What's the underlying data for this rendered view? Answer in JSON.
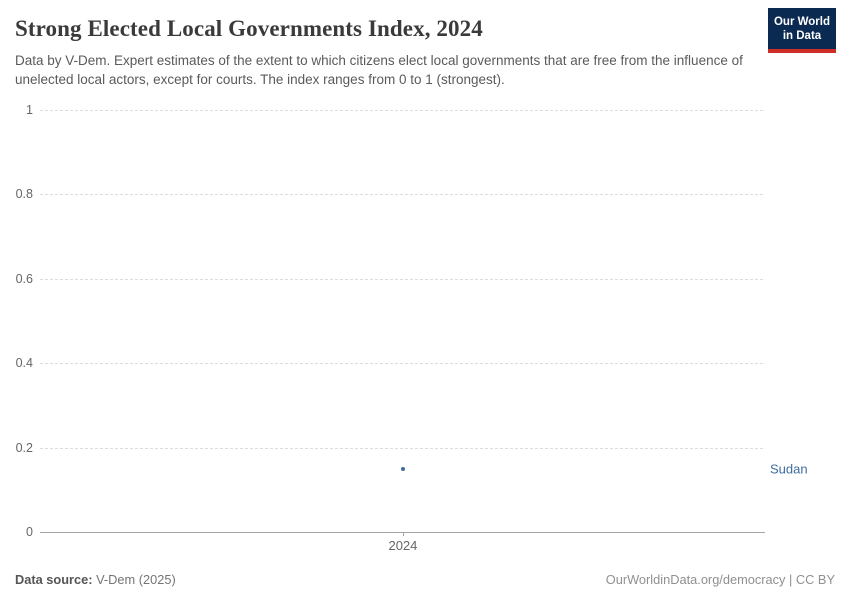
{
  "header": {
    "title": "Strong Elected Local Governments Index, 2024",
    "subtitle": "Data by V-Dem. Expert estimates of the extent to which citizens elect local governments that are free from the influence of unelected local actors, except for courts. The index ranges from 0 to 1 (strongest).",
    "logo": {
      "line1": "Our World",
      "line2": "in Data",
      "bg_color": "#0b2a51",
      "accent_color": "#cf2d28"
    }
  },
  "chart_data": {
    "type": "scatter",
    "title": "Strong Elected Local Governments Index, 2024",
    "xlabel": "",
    "ylabel": "",
    "ylim": [
      0,
      1
    ],
    "y_ticks": [
      0,
      0.2,
      0.4,
      0.6,
      0.8,
      1
    ],
    "y_tick_labels": [
      "0",
      "0.2",
      "0.4",
      "0.6",
      "0.8",
      "1"
    ],
    "x_ticks": [
      2024
    ],
    "x_tick_labels": [
      "2024"
    ],
    "grid": "horizontal-dashed",
    "legend_position": "entity-label-right",
    "series": [
      {
        "name": "Sudan",
        "x": 2024,
        "value": 0.15,
        "color": "#3d6d9e"
      }
    ]
  },
  "footer": {
    "source_label": "Data source:",
    "source_value": " V-Dem (2025)",
    "attribution": "OurWorldinData.org/democracy | CC BY"
  }
}
